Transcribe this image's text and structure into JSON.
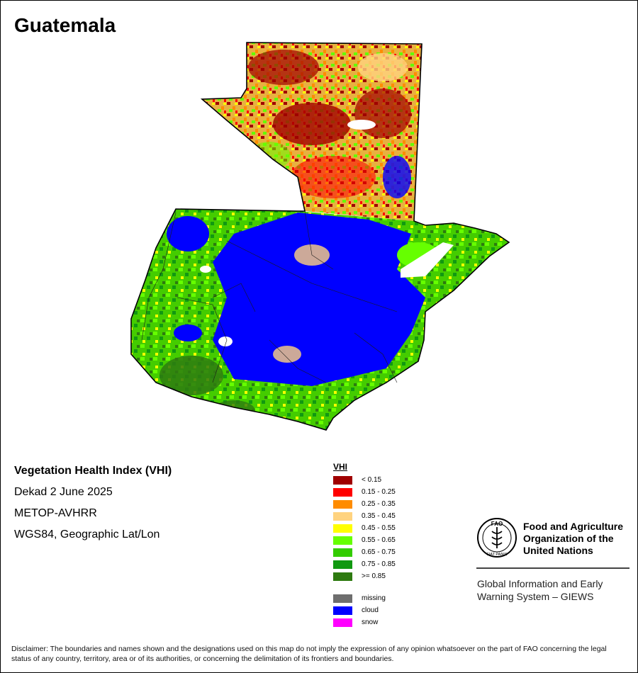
{
  "map": {
    "title": "Guatemala",
    "region": "Guatemala"
  },
  "info": {
    "product": "Vegetation Health Index (VHI)",
    "dekad": "Dekad 2 June 2025",
    "sensor": "METOP-AVHRR",
    "projection": "WGS84, Geographic Lat/Lon"
  },
  "legend": {
    "title": "VHI",
    "classes": [
      {
        "label": "< 0.15",
        "color": "#a00000"
      },
      {
        "label": "0.15 - 0.25",
        "color": "#ff0000"
      },
      {
        "label": "0.25 - 0.35",
        "color": "#ff8c00"
      },
      {
        "label": "0.35 - 0.45",
        "color": "#ffd37f"
      },
      {
        "label": "0.45 - 0.55",
        "color": "#ffff00"
      },
      {
        "label": "0.55 - 0.65",
        "color": "#66ff00"
      },
      {
        "label": "0.65 - 0.75",
        "color": "#33cc00"
      },
      {
        "label": "0.75 - 0.85",
        "color": "#119911"
      },
      {
        "label": ">= 0.85",
        "color": "#2e7a10"
      }
    ],
    "special": [
      {
        "label": "missing",
        "color": "#6e6e6e"
      },
      {
        "label": "cloud",
        "color": "#0000ff"
      },
      {
        "label": "snow",
        "color": "#ff00ff"
      }
    ]
  },
  "org": {
    "name_lines": [
      "Food and Agriculture",
      "Organization of the",
      "United Nations"
    ],
    "logo_text": "FAO",
    "logo_motto": "FIAT PANIS",
    "system_lines": [
      "Global Information and Early",
      "Warning System – GIEWS"
    ]
  },
  "disclaimer": "Disclaimer: The boundaries and names shown and the designations used on this map do not imply the expression of any opinion whatsoever on the part of FAO concerning the legal status of any country, territory, area or of its authorities, or concerning the delimitation of its frontiers and boundaries."
}
